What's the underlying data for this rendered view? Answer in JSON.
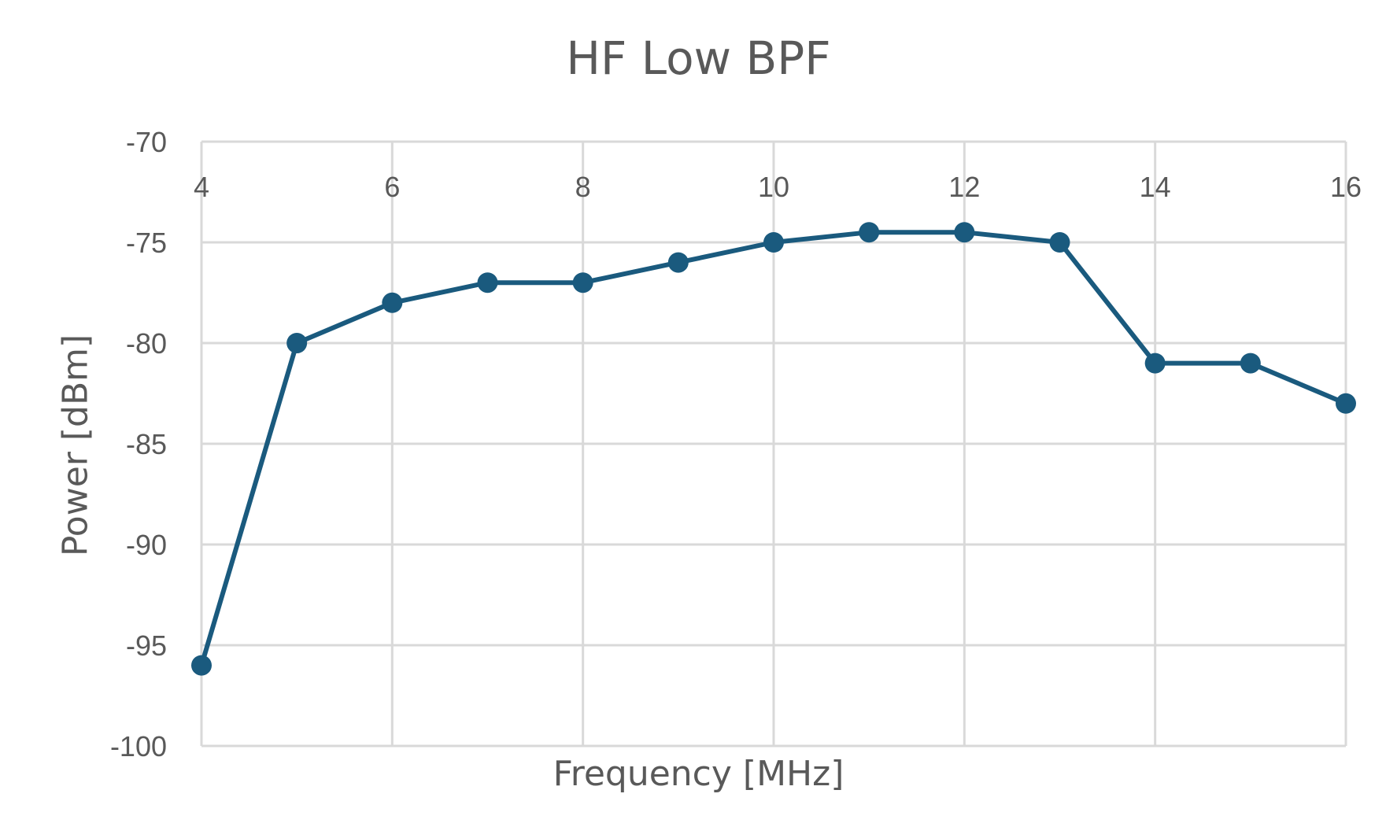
{
  "chart_data": {
    "type": "scatter",
    "title": "HF Low BPF",
    "xlabel": "Frequency [MHz]",
    "ylabel": "Power [dBm]",
    "xlim": [
      4,
      16
    ],
    "ylim": [
      -100,
      -70
    ],
    "x_ticks": [
      "4",
      "6",
      "8",
      "10",
      "12",
      "14",
      "16"
    ],
    "y_ticks": [
      "-70",
      "-75",
      "-80",
      "-85",
      "-90",
      "-95",
      "-100"
    ],
    "x_axis_position": "top",
    "grid": true,
    "legend": "none",
    "series": [
      {
        "x": [
          4,
          5,
          6,
          7,
          8,
          9,
          10,
          11,
          12,
          13,
          14,
          15,
          16
        ],
        "y": [
          -96,
          -80,
          -78,
          -77,
          -77,
          -76,
          -75,
          -74.5,
          -74.5,
          -75,
          -81,
          -81,
          -83
        ],
        "color": "#1a5a7e",
        "marker": "circle",
        "line": "solid"
      }
    ]
  }
}
